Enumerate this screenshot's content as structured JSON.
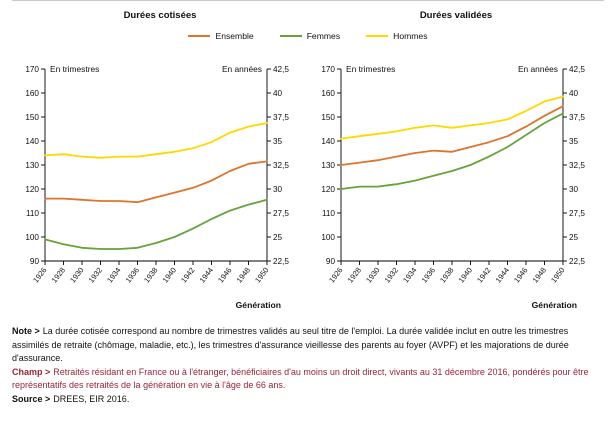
{
  "legend": [
    {
      "label": "Ensemble",
      "color": "#e0732c"
    },
    {
      "label": "Femmes",
      "color": "#66a33a"
    },
    {
      "label": "Hommes",
      "color": "#ffd800"
    }
  ],
  "chart_data": [
    {
      "type": "line",
      "title": "Durées cotisées",
      "left_axis_label": "En trimestres",
      "right_axis_label": "En années",
      "xlabel": "Génération",
      "ylim": [
        90,
        170
      ],
      "ylim_annees": [
        22.5,
        42.5
      ],
      "yticks_left": [
        90,
        100,
        110,
        120,
        130,
        140,
        150,
        160,
        170
      ],
      "yticks_right": [
        "22,5",
        "25",
        "27,5",
        "30",
        "32,5",
        "35",
        "37,5",
        "40",
        "42,5"
      ],
      "categories": [
        "1926",
        "1928",
        "1930",
        "1932",
        "1934",
        "1936",
        "1938",
        "1940",
        "1942",
        "1944",
        "1946",
        "1948",
        "1950"
      ],
      "series": [
        {
          "name": "Ensemble",
          "color": "#e0732c",
          "values": [
            116,
            116,
            115.5,
            115,
            115,
            114.5,
            116.5,
            118.5,
            120.5,
            123.5,
            127.5,
            130.5,
            131.5
          ]
        },
        {
          "name": "Femmes",
          "color": "#66a33a",
          "values": [
            99,
            97,
            95.5,
            95,
            95,
            95.5,
            97.5,
            100,
            103.5,
            107.5,
            111,
            113.5,
            115.5
          ]
        },
        {
          "name": "Hommes",
          "color": "#ffd800",
          "values": [
            134,
            134.5,
            133.5,
            133,
            133.5,
            133.5,
            134.5,
            135.5,
            137,
            139.5,
            143.5,
            146,
            147.5
          ]
        }
      ]
    },
    {
      "type": "line",
      "title": "Durées validées",
      "left_axis_label": "En trimestres",
      "right_axis_label": "En années",
      "xlabel": "Génération",
      "ylim": [
        90,
        170
      ],
      "ylim_annees": [
        22.5,
        42.5
      ],
      "yticks_left": [
        90,
        100,
        110,
        120,
        130,
        140,
        150,
        160,
        170
      ],
      "yticks_right": [
        "22,5",
        "25",
        "27,5",
        "30",
        "32,5",
        "35",
        "37,5",
        "40",
        "42,5"
      ],
      "categories": [
        "1926",
        "1928",
        "1930",
        "1932",
        "1934",
        "1936",
        "1938",
        "1940",
        "1942",
        "1944",
        "1946",
        "1948",
        "1950"
      ],
      "series": [
        {
          "name": "Ensemble",
          "color": "#e0732c",
          "values": [
            130,
            131,
            132,
            133.5,
            135,
            136,
            135.5,
            137.5,
            139.5,
            142,
            146,
            150.5,
            154.5
          ]
        },
        {
          "name": "Femmes",
          "color": "#66a33a",
          "values": [
            120,
            121,
            121,
            122,
            123.5,
            125.5,
            127.5,
            130,
            133.5,
            137.5,
            142.5,
            147.5,
            151.5
          ]
        },
        {
          "name": "Hommes",
          "color": "#ffd800",
          "values": [
            141,
            142,
            143,
            144,
            145.5,
            146.5,
            145.5,
            146.5,
            147.5,
            149,
            152.5,
            156.5,
            158.5
          ]
        }
      ]
    }
  ],
  "footer": {
    "note_label": "Note >",
    "note_text": "La durée cotisée correspond au nombre de trimestres validés au seul titre de l'emploi. La durée validée inclut en outre les trimestres assimilés de retraite (chômage, maladie, etc.), les trimestres d'assurance vieillesse des parents au foyer (AVPF) et les majorations de durée d'assurance.",
    "champ_label": "Champ >",
    "champ_text": "Retraités résidant en France ou à l'étranger, bénéficiaires d'au moins un droit direct, vivants au 31 décembre 2016, pondérés pour être représentatifs des retraités de la génération en vie à l'âge de 66 ans.",
    "source_label": "Source >",
    "source_text": "DREES, EIR 2016."
  }
}
